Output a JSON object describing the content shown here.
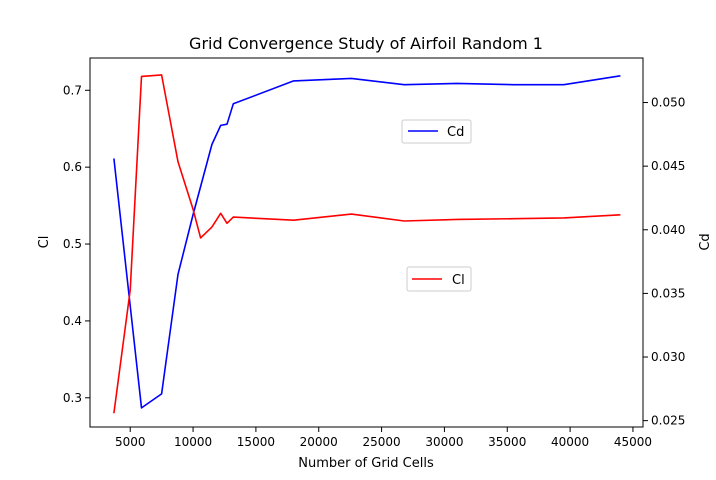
{
  "chart_data": {
    "type": "line",
    "title": "Grid Convergence Study of Airfoil Random 1",
    "xlabel": "Number of Grid Cells",
    "ylabel_left": "Cl",
    "ylabel_right": "Cd",
    "xlim": [
      1800,
      45800
    ],
    "ylim_left": [
      0.262,
      0.742
    ],
    "ylim_right": [
      0.0245,
      0.0535
    ],
    "x_ticks": [
      5000,
      10000,
      15000,
      20000,
      25000,
      30000,
      35000,
      40000,
      45000
    ],
    "y_left_ticks": [
      0.3,
      0.4,
      0.5,
      0.6,
      0.7
    ],
    "y_right_ticks": [
      0.025,
      0.03,
      0.035,
      0.04,
      0.045,
      0.05
    ],
    "grid": false,
    "series": [
      {
        "name": "Cd",
        "axis": "right",
        "color": "#0000ff",
        "legend_placement": "upper-right-center",
        "x": [
          3700,
          5900,
          7500,
          8800,
          10000,
          11500,
          12200,
          12700,
          13200,
          18000,
          22600,
          26800,
          31000,
          35500,
          39500,
          44000
        ],
        "y": [
          0.0456,
          0.026,
          0.0271,
          0.0365,
          0.0412,
          0.0467,
          0.0482,
          0.0483,
          0.0499,
          0.0517,
          0.0519,
          0.0514,
          0.0515,
          0.0514,
          0.0514,
          0.0521
        ]
      },
      {
        "name": "Cl",
        "axis": "left",
        "color": "#ff0000",
        "legend_placement": "center-right",
        "x": [
          3700,
          5000,
          5900,
          7500,
          8800,
          10000,
          10600,
          11500,
          12200,
          12700,
          13200,
          18000,
          22600,
          26800,
          31000,
          35500,
          39500,
          44000
        ],
        "y": [
          0.28,
          0.44,
          0.718,
          0.72,
          0.607,
          0.545,
          0.508,
          0.522,
          0.54,
          0.527,
          0.535,
          0.531,
          0.539,
          0.53,
          0.532,
          0.533,
          0.534,
          0.538
        ]
      }
    ]
  }
}
